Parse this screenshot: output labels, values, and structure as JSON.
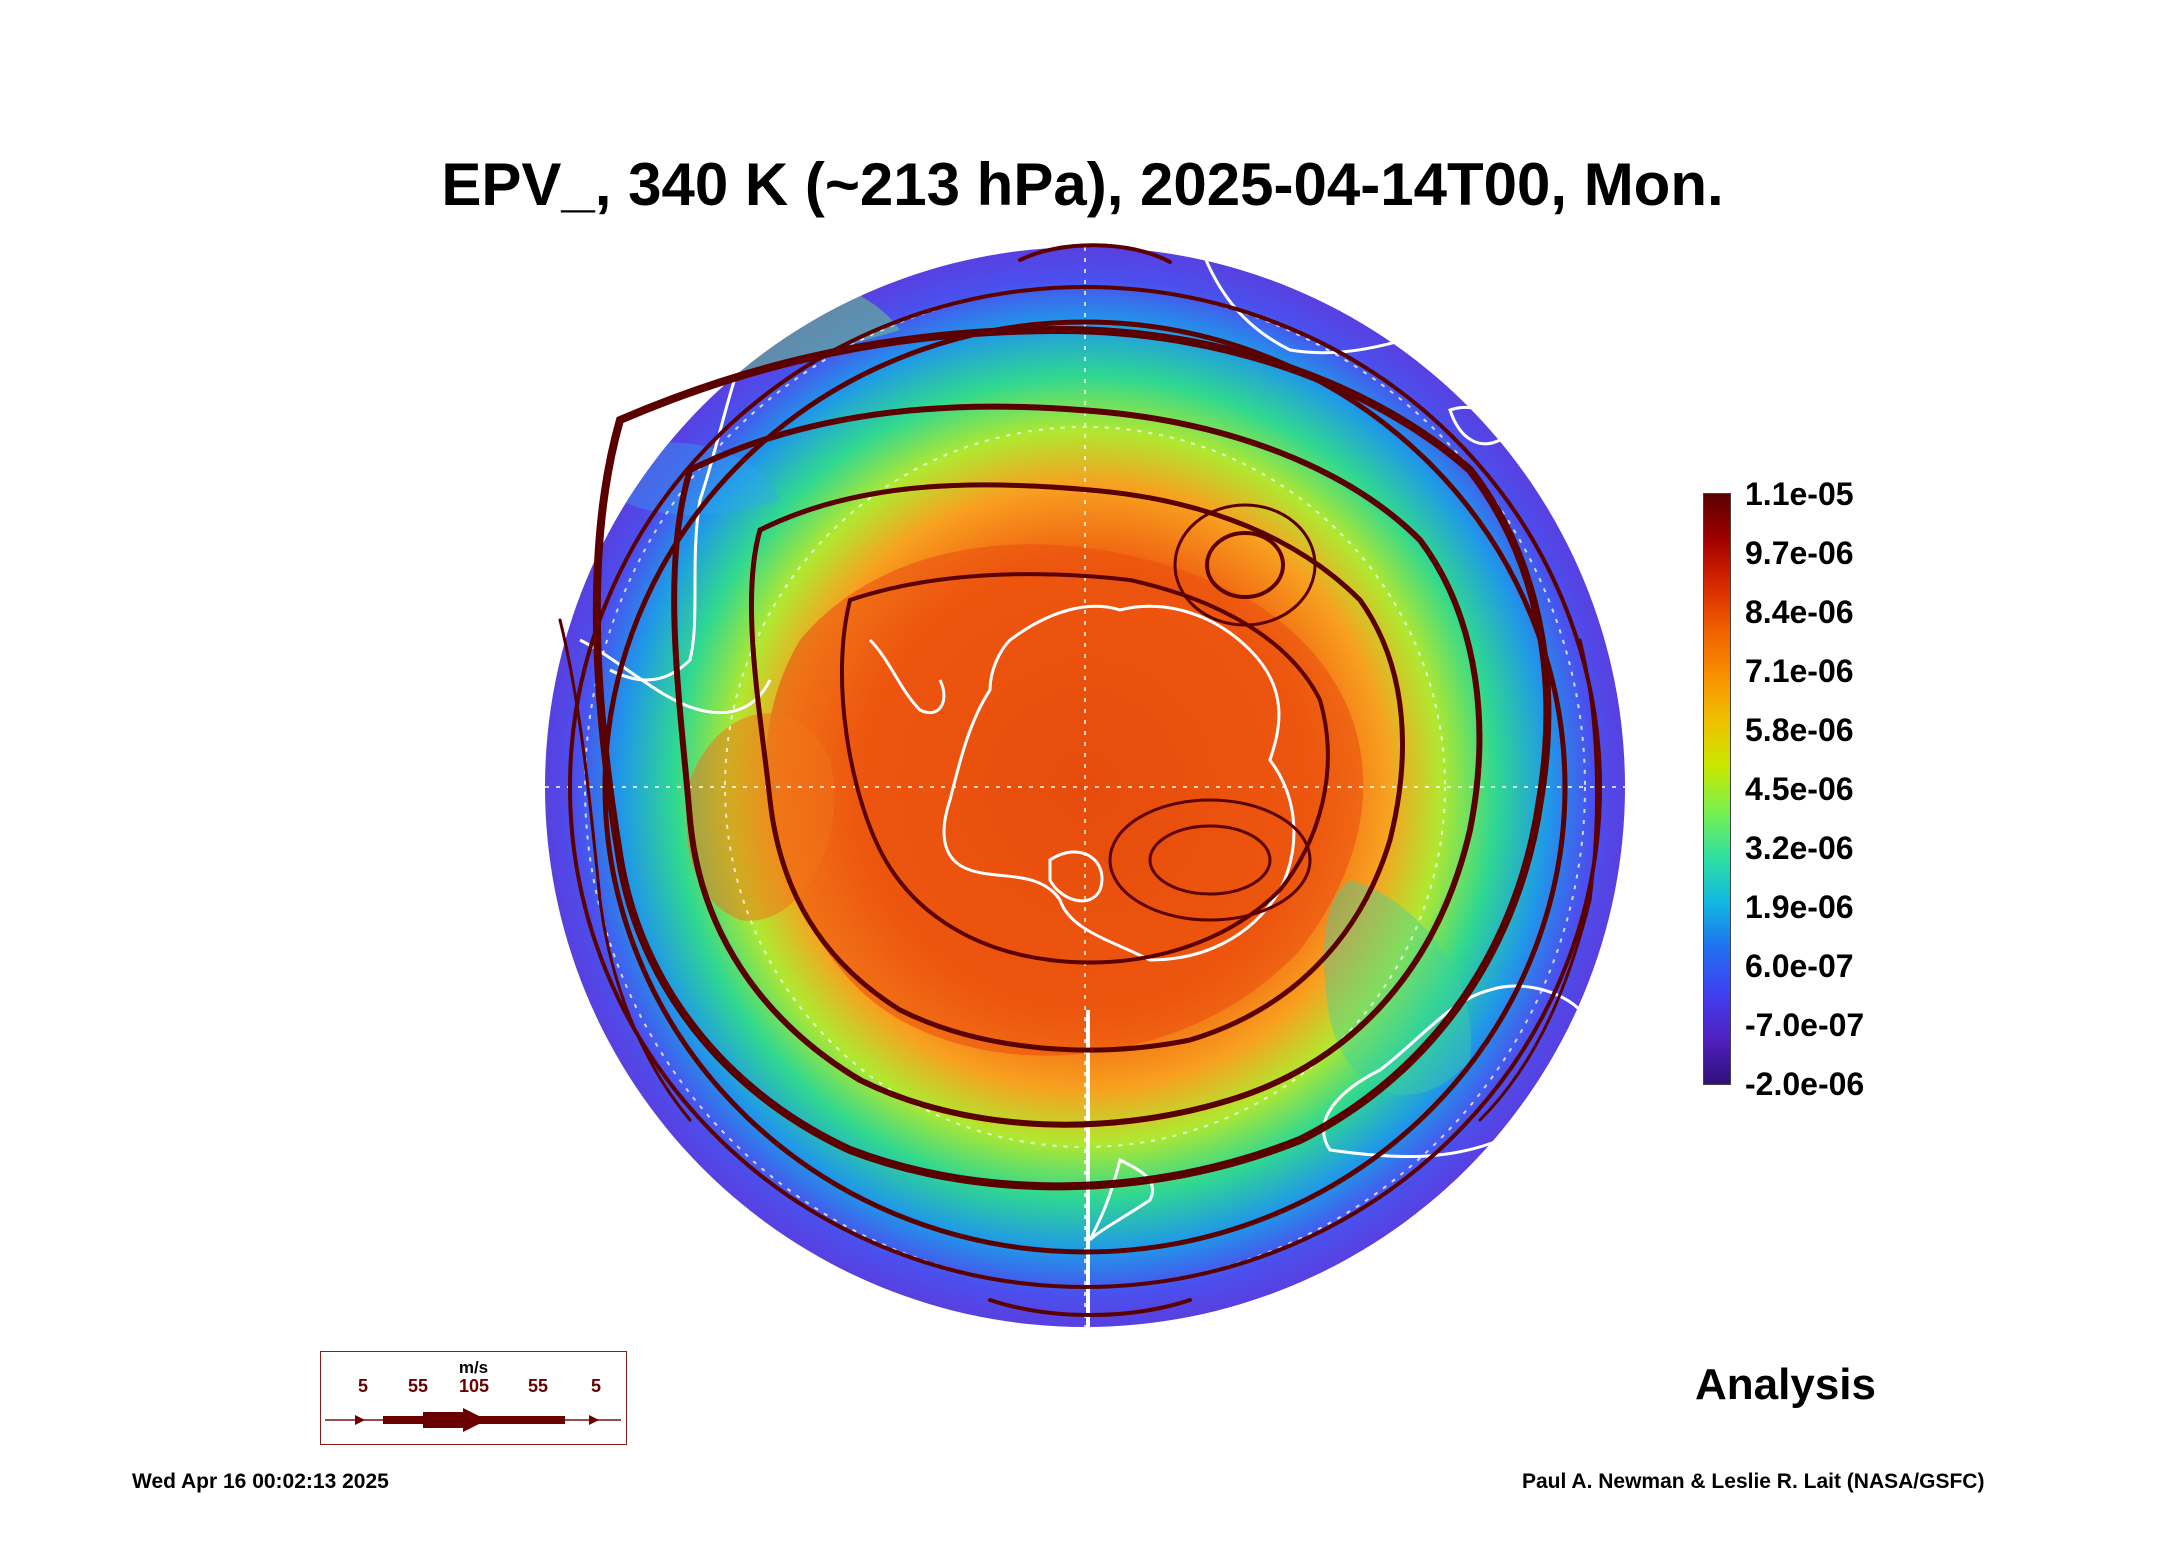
{
  "title": "EPV_, 340 K (~213 hPa), 2025-04-14T00, Mon.",
  "colorbar": {
    "labels": [
      "1.1e-05",
      "9.7e-06",
      "8.4e-06",
      "7.1e-06",
      "5.8e-06",
      "4.5e-06",
      "3.2e-06",
      "1.9e-06",
      "6.0e-07",
      "-7.0e-07",
      "-2.0e-06"
    ]
  },
  "legend": {
    "units": "m/s",
    "speeds": [
      "5",
      "55",
      "105",
      "55",
      "5"
    ]
  },
  "panel_label": "Analysis",
  "footer": {
    "timestamp": "Wed Apr 16 00:02:13 2025",
    "credit": "Paul A. Newman & Leslie R. Lait (NASA/GSFC)"
  },
  "colors": {
    "streamline": "#5a0000",
    "coastline": "#ffffff",
    "low_pv": "#5a48e8",
    "high_pv": "#e85a10"
  }
}
